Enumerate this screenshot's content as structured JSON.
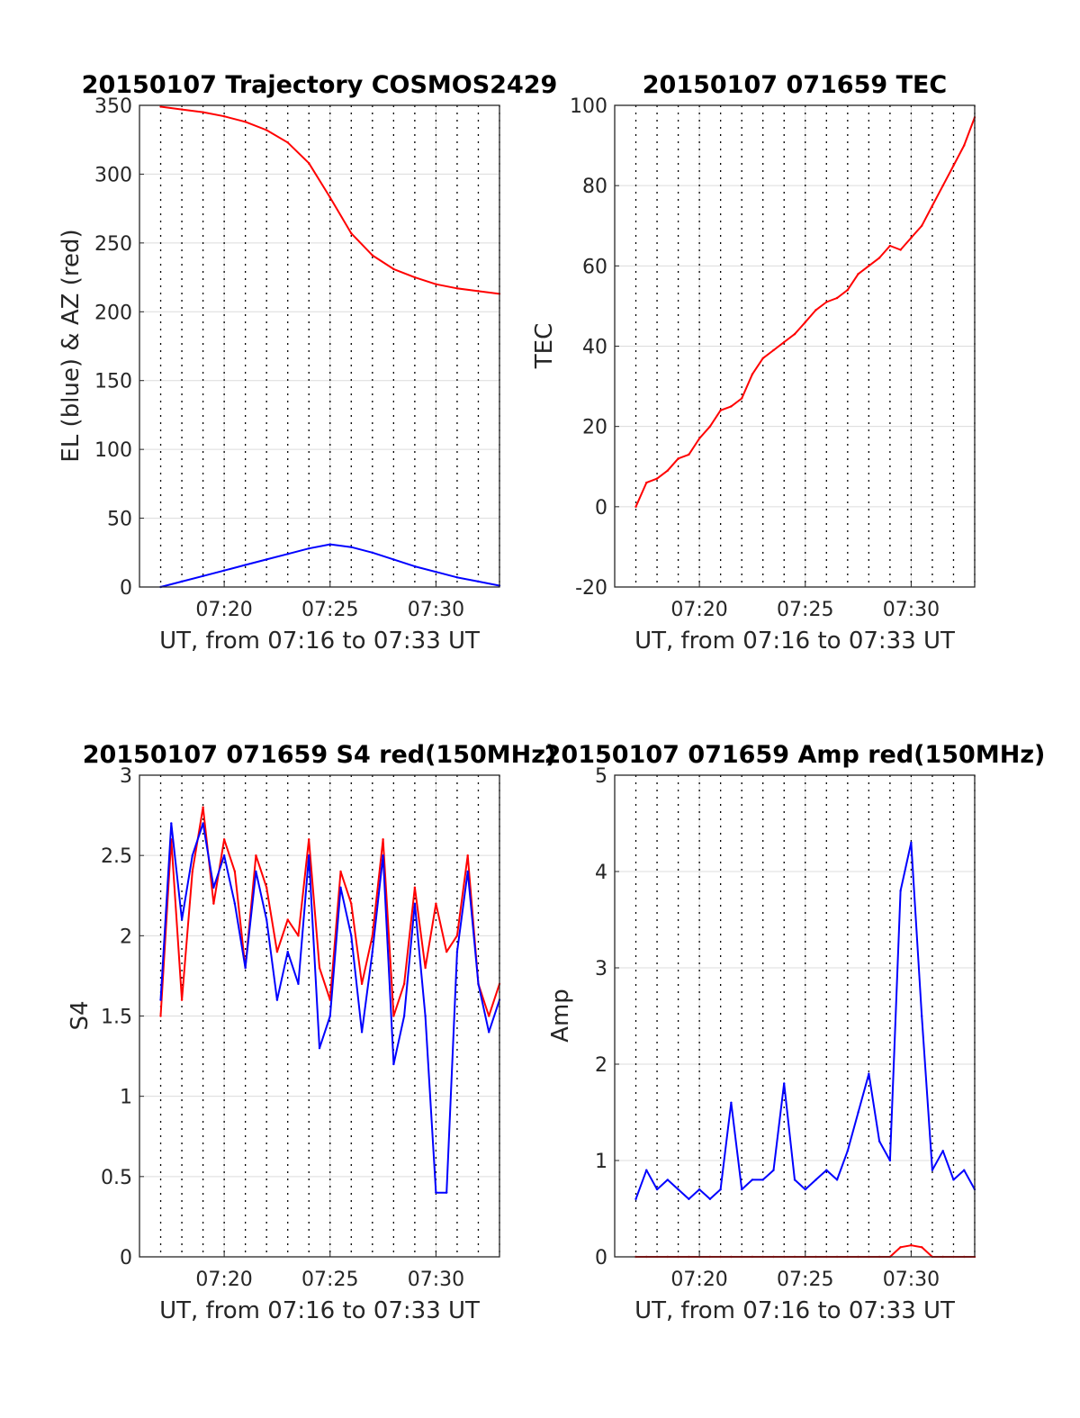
{
  "figure": {
    "background": "#ffffff",
    "colors": {
      "el": "#0000ff",
      "az": "#ff0000",
      "tec": "#ff0000",
      "s4_red": "#ff0000",
      "s4_blue": "#0000ff",
      "amp_red": "#ff0000",
      "amp_blue": "#0000ff",
      "grid": "#dcdcdc",
      "dotted": "#000000"
    }
  },
  "chart_data": [
    {
      "id": "trajectory",
      "type": "line",
      "title": "20150107 Trajectory COSMOS2429",
      "xlabel": "UT, from 07:16 to 07:33 UT",
      "ylabel": "EL (blue) & AZ (red)",
      "xlim": [
        "07:16",
        "07:33"
      ],
      "xticks": [
        "07:20",
        "07:25",
        "07:30"
      ],
      "ylim": [
        0,
        350
      ],
      "yticks": [
        "0",
        "50",
        "100",
        "150",
        "200",
        "250",
        "300",
        "350"
      ],
      "grid": true,
      "x": [
        "07:17",
        "07:18",
        "07:19",
        "07:20",
        "07:21",
        "07:22",
        "07:23",
        "07:24",
        "07:25",
        "07:26",
        "07:27",
        "07:28",
        "07:29",
        "07:30",
        "07:31",
        "07:32",
        "07:33"
      ],
      "series": [
        {
          "values": [
            349,
            347,
            345,
            342,
            338,
            332,
            323,
            308,
            283,
            257,
            241,
            231,
            225,
            220,
            217,
            215,
            213
          ],
          "color": "#ff0000"
        },
        {
          "values": [
            0,
            4,
            8,
            12,
            16,
            20,
            24,
            28,
            31,
            29,
            25,
            20,
            15,
            11,
            7,
            4,
            1
          ],
          "color": "#0000ff"
        }
      ]
    },
    {
      "id": "tec",
      "type": "line",
      "title": "20150107 071659 TEC",
      "xlabel": "UT, from 07:16 to 07:33 UT",
      "ylabel": "TEC",
      "xlim": [
        "07:16",
        "07:33"
      ],
      "xticks": [
        "07:20",
        "07:25",
        "07:30"
      ],
      "ylim": [
        -20,
        100
      ],
      "yticks": [
        "-20",
        "0",
        "20",
        "40",
        "60",
        "80",
        "100"
      ],
      "grid": true,
      "x": [
        "07:17",
        "07:17:30",
        "07:18",
        "07:18:30",
        "07:19",
        "07:19:30",
        "07:20",
        "07:20:30",
        "07:21",
        "07:21:30",
        "07:22",
        "07:22:30",
        "07:23",
        "07:23:30",
        "07:24",
        "07:24:30",
        "07:25",
        "07:25:30",
        "07:26",
        "07:26:30",
        "07:27",
        "07:27:30",
        "07:28",
        "07:28:30",
        "07:29",
        "07:29:30",
        "07:30",
        "07:30:30",
        "07:31",
        "07:31:30",
        "07:32",
        "07:32:30",
        "07:33"
      ],
      "series": [
        {
          "values": [
            0,
            6,
            7,
            9,
            12,
            13,
            17,
            20,
            24,
            25,
            27,
            33,
            37,
            39,
            41,
            43,
            46,
            49,
            51,
            52,
            54,
            58,
            60,
            62,
            65,
            64,
            67,
            70,
            75,
            80,
            85,
            90,
            97
          ],
          "color": "#ff0000"
        }
      ]
    },
    {
      "id": "s4",
      "type": "line",
      "title": "20150107 071659 S4 red(150MHz)",
      "xlabel": "UT, from 07:16 to 07:33 UT",
      "ylabel": "S4",
      "xlim": [
        "07:16",
        "07:33"
      ],
      "xticks": [
        "07:20",
        "07:25",
        "07:30"
      ],
      "ylim": [
        0,
        3
      ],
      "yticks": [
        "0",
        "0.5",
        "1",
        "1.5",
        "2",
        "2.5",
        "3"
      ],
      "grid": true,
      "x": [
        "07:17",
        "07:17:30",
        "07:18",
        "07:18:30",
        "07:19",
        "07:19:30",
        "07:20",
        "07:20:30",
        "07:21",
        "07:21:30",
        "07:22",
        "07:22:30",
        "07:23",
        "07:23:30",
        "07:24",
        "07:24:30",
        "07:25",
        "07:25:30",
        "07:26",
        "07:26:30",
        "07:27",
        "07:27:30",
        "07:28",
        "07:28:30",
        "07:29",
        "07:29:30",
        "07:30",
        "07:30:30",
        "07:31",
        "07:31:30",
        "07:32",
        "07:32:30",
        "07:33"
      ],
      "series": [
        {
          "values": [
            1.5,
            2.6,
            1.6,
            2.4,
            2.8,
            2.2,
            2.6,
            2.4,
            1.8,
            2.5,
            2.3,
            1.9,
            2.1,
            2.0,
            2.6,
            1.8,
            1.6,
            2.4,
            2.2,
            1.7,
            2.0,
            2.6,
            1.5,
            1.7,
            2.3,
            1.8,
            2.2,
            1.9,
            2.0,
            2.5,
            1.7,
            1.5,
            1.7
          ],
          "color": "#ff0000"
        },
        {
          "values": [
            1.6,
            2.7,
            2.1,
            2.5,
            2.7,
            2.3,
            2.5,
            2.2,
            1.8,
            2.4,
            2.1,
            1.6,
            1.9,
            1.7,
            2.5,
            1.3,
            1.5,
            2.3,
            2.0,
            1.4,
            1.9,
            2.5,
            1.2,
            1.5,
            2.2,
            1.5,
            0.4,
            0.4,
            1.9,
            2.4,
            1.7,
            1.4,
            1.6
          ],
          "color": "#0000ff"
        }
      ]
    },
    {
      "id": "amp",
      "type": "line",
      "title": "20150107 071659 Amp red(150MHz)",
      "xlabel": "UT, from 07:16 to 07:33 UT",
      "ylabel": "Amp",
      "xlim": [
        "07:16",
        "07:33"
      ],
      "xticks": [
        "07:20",
        "07:25",
        "07:30"
      ],
      "ylim": [
        0,
        5
      ],
      "yticks": [
        "0",
        "1",
        "2",
        "3",
        "4",
        "5"
      ],
      "grid": true,
      "x": [
        "07:17",
        "07:17:30",
        "07:18",
        "07:18:30",
        "07:19",
        "07:19:30",
        "07:20",
        "07:20:30",
        "07:21",
        "07:21:30",
        "07:22",
        "07:22:30",
        "07:23",
        "07:23:30",
        "07:24",
        "07:24:30",
        "07:25",
        "07:25:30",
        "07:26",
        "07:26:30",
        "07:27",
        "07:27:30",
        "07:28",
        "07:28:30",
        "07:29",
        "07:29:30",
        "07:30",
        "07:30:30",
        "07:31",
        "07:31:30",
        "07:32",
        "07:32:30",
        "07:33"
      ],
      "series": [
        {
          "values": [
            0.6,
            0.9,
            0.7,
            0.8,
            0.7,
            0.6,
            0.7,
            0.6,
            0.7,
            1.6,
            0.7,
            0.8,
            0.8,
            0.9,
            1.8,
            0.8,
            0.7,
            0.8,
            0.9,
            0.8,
            1.1,
            1.5,
            1.9,
            1.2,
            1.0,
            3.8,
            4.3,
            2.5,
            0.9,
            1.1,
            0.8,
            0.9,
            0.7
          ],
          "color": "#0000ff"
        },
        {
          "values": [
            0,
            0,
            0,
            0,
            0,
            0,
            0,
            0,
            0,
            0,
            0,
            0,
            0,
            0,
            0,
            0,
            0,
            0,
            0,
            0,
            0,
            0,
            0,
            0,
            0,
            0.1,
            0.12,
            0.1,
            0,
            0,
            0,
            0,
            0
          ],
          "color": "#ff0000"
        }
      ]
    }
  ]
}
